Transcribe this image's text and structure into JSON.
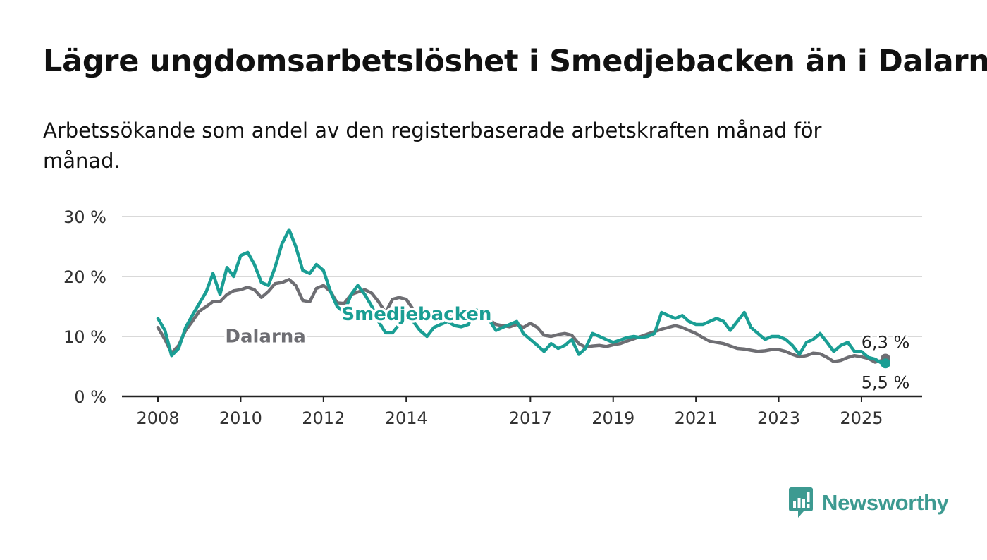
{
  "header": {
    "title": "Lägre ungdomsarbetslöshet i Smedjebacken än i Dalarna",
    "subtitle": "Arbetssökande som andel av den registerbaserade arbetskraften månad för månad."
  },
  "brand": {
    "name": "Newsworthy",
    "logo_icon": "newsworthy-logo-icon",
    "color": "#3d9a91"
  },
  "chart_data": {
    "type": "line",
    "title": "Lägre ungdomsarbetslöshet i Smedjebacken än i Dalarna",
    "subtitle": "Arbetssökande som andel av den registerbaserade arbetskraften månad för månad.",
    "xlabel": "",
    "ylabel": "",
    "x_range": [
      2008.0,
      2025.58
    ],
    "ylim": [
      0,
      30
    ],
    "y_ticks": [
      {
        "value": 0,
        "label": "0 %"
      },
      {
        "value": 10,
        "label": "10 %"
      },
      {
        "value": 20,
        "label": "20 %"
      },
      {
        "value": 30,
        "label": "30 %"
      }
    ],
    "x_ticks": [
      {
        "value": 2008,
        "label": "2008"
      },
      {
        "value": 2010,
        "label": "2010"
      },
      {
        "value": 2012,
        "label": "2012"
      },
      {
        "value": 2014,
        "label": "2014"
      },
      {
        "value": 2017,
        "label": "2017"
      },
      {
        "value": 2019,
        "label": "2019"
      },
      {
        "value": 2021,
        "label": "2021"
      },
      {
        "value": 2023,
        "label": "2023"
      },
      {
        "value": 2025,
        "label": "2025"
      }
    ],
    "grid": true,
    "legend": "inline labels",
    "series": [
      {
        "name": "Dalarna",
        "color": "#6e6e73",
        "label_at": [
          2010.6,
          9.0
        ],
        "end_label": "6,3 %",
        "points": [
          [
            2008.0,
            11.5
          ],
          [
            2008.17,
            9.5
          ],
          [
            2008.33,
            7.2
          ],
          [
            2008.5,
            8.5
          ],
          [
            2008.67,
            11.0
          ],
          [
            2008.83,
            12.5
          ],
          [
            2009.0,
            14.2
          ],
          [
            2009.17,
            15.0
          ],
          [
            2009.33,
            15.8
          ],
          [
            2009.5,
            15.8
          ],
          [
            2009.67,
            17.0
          ],
          [
            2009.83,
            17.6
          ],
          [
            2010.0,
            17.8
          ],
          [
            2010.17,
            18.2
          ],
          [
            2010.33,
            17.8
          ],
          [
            2010.5,
            16.5
          ],
          [
            2010.67,
            17.5
          ],
          [
            2010.83,
            18.8
          ],
          [
            2011.0,
            19.0
          ],
          [
            2011.17,
            19.5
          ],
          [
            2011.33,
            18.5
          ],
          [
            2011.5,
            16.0
          ],
          [
            2011.67,
            15.8
          ],
          [
            2011.83,
            18.0
          ],
          [
            2012.0,
            18.5
          ],
          [
            2012.17,
            17.5
          ],
          [
            2012.33,
            15.6
          ],
          [
            2012.5,
            15.5
          ],
          [
            2012.67,
            17.0
          ],
          [
            2012.83,
            17.4
          ],
          [
            2013.0,
            17.8
          ],
          [
            2013.17,
            17.2
          ],
          [
            2013.33,
            15.8
          ],
          [
            2013.5,
            14.0
          ],
          [
            2013.67,
            16.2
          ],
          [
            2013.83,
            16.5
          ],
          [
            2014.0,
            16.2
          ],
          [
            2014.17,
            14.5
          ],
          [
            2014.33,
            13.8
          ],
          [
            2014.5,
            14.0
          ],
          [
            2014.67,
            13.5
          ],
          [
            2014.83,
            13.8
          ],
          [
            2015.0,
            14.0
          ],
          [
            2015.17,
            13.5
          ],
          [
            2015.33,
            13.2
          ],
          [
            2015.5,
            13.0
          ],
          [
            2015.67,
            13.8
          ],
          [
            2015.83,
            13.5
          ],
          [
            2016.0,
            12.8
          ],
          [
            2016.17,
            12.0
          ],
          [
            2016.33,
            11.8
          ],
          [
            2016.5,
            11.6
          ],
          [
            2016.67,
            12.0
          ],
          [
            2016.83,
            11.5
          ],
          [
            2017.0,
            12.2
          ],
          [
            2017.17,
            11.5
          ],
          [
            2017.33,
            10.2
          ],
          [
            2017.5,
            10.0
          ],
          [
            2017.67,
            10.3
          ],
          [
            2017.83,
            10.5
          ],
          [
            2018.0,
            10.2
          ],
          [
            2018.17,
            8.8
          ],
          [
            2018.33,
            8.2
          ],
          [
            2018.5,
            8.4
          ],
          [
            2018.67,
            8.5
          ],
          [
            2018.83,
            8.3
          ],
          [
            2019.0,
            8.6
          ],
          [
            2019.17,
            8.8
          ],
          [
            2019.33,
            9.2
          ],
          [
            2019.5,
            9.6
          ],
          [
            2019.67,
            10.0
          ],
          [
            2019.83,
            10.4
          ],
          [
            2020.0,
            10.8
          ],
          [
            2020.17,
            11.2
          ],
          [
            2020.33,
            11.5
          ],
          [
            2020.5,
            11.8
          ],
          [
            2020.67,
            11.5
          ],
          [
            2020.83,
            11.0
          ],
          [
            2021.0,
            10.5
          ],
          [
            2021.17,
            9.8
          ],
          [
            2021.33,
            9.2
          ],
          [
            2021.5,
            9.0
          ],
          [
            2021.67,
            8.8
          ],
          [
            2021.83,
            8.4
          ],
          [
            2022.0,
            8.0
          ],
          [
            2022.17,
            7.9
          ],
          [
            2022.33,
            7.7
          ],
          [
            2022.5,
            7.5
          ],
          [
            2022.67,
            7.6
          ],
          [
            2022.83,
            7.8
          ],
          [
            2023.0,
            7.8
          ],
          [
            2023.17,
            7.5
          ],
          [
            2023.33,
            7.0
          ],
          [
            2023.5,
            6.6
          ],
          [
            2023.67,
            6.8
          ],
          [
            2023.83,
            7.2
          ],
          [
            2024.0,
            7.1
          ],
          [
            2024.17,
            6.5
          ],
          [
            2024.33,
            5.8
          ],
          [
            2024.5,
            6.0
          ],
          [
            2024.67,
            6.5
          ],
          [
            2024.83,
            6.8
          ],
          [
            2025.0,
            6.6
          ],
          [
            2025.17,
            6.3
          ],
          [
            2025.33,
            5.7
          ],
          [
            2025.5,
            6.0
          ],
          [
            2025.58,
            6.3
          ]
        ]
      },
      {
        "name": "Smedjebacken",
        "color": "#1a9e94",
        "label_at": [
          2014.25,
          12.7
        ],
        "end_label": "5,5 %",
        "points": [
          [
            2008.0,
            13.0
          ],
          [
            2008.17,
            11.0
          ],
          [
            2008.33,
            6.8
          ],
          [
            2008.5,
            8.0
          ],
          [
            2008.67,
            11.5
          ],
          [
            2008.83,
            13.5
          ],
          [
            2009.0,
            15.5
          ],
          [
            2009.17,
            17.5
          ],
          [
            2009.33,
            20.5
          ],
          [
            2009.5,
            17.0
          ],
          [
            2009.67,
            21.5
          ],
          [
            2009.83,
            20.0
          ],
          [
            2010.0,
            23.5
          ],
          [
            2010.17,
            24.0
          ],
          [
            2010.33,
            22.0
          ],
          [
            2010.5,
            19.0
          ],
          [
            2010.67,
            18.5
          ],
          [
            2010.83,
            21.5
          ],
          [
            2011.0,
            25.5
          ],
          [
            2011.17,
            27.8
          ],
          [
            2011.33,
            25.0
          ],
          [
            2011.5,
            21.0
          ],
          [
            2011.67,
            20.5
          ],
          [
            2011.83,
            22.0
          ],
          [
            2012.0,
            21.0
          ],
          [
            2012.17,
            17.5
          ],
          [
            2012.33,
            15.0
          ],
          [
            2012.5,
            14.0
          ],
          [
            2012.67,
            17.0
          ],
          [
            2012.83,
            18.5
          ],
          [
            2013.0,
            17.0
          ],
          [
            2013.17,
            15.0
          ],
          [
            2013.33,
            12.5
          ],
          [
            2013.5,
            10.6
          ],
          [
            2013.67,
            10.6
          ],
          [
            2013.83,
            12.0
          ],
          [
            2014.0,
            13.0
          ],
          [
            2014.17,
            12.5
          ],
          [
            2014.33,
            11.0
          ],
          [
            2014.5,
            10.0
          ],
          [
            2014.67,
            11.5
          ],
          [
            2014.83,
            12.0
          ],
          [
            2015.0,
            12.5
          ],
          [
            2015.17,
            11.8
          ],
          [
            2015.33,
            11.6
          ],
          [
            2015.5,
            12.0
          ],
          [
            2015.67,
            14.5
          ],
          [
            2015.83,
            14.0
          ],
          [
            2016.0,
            12.8
          ],
          [
            2016.17,
            11.0
          ],
          [
            2016.33,
            11.5
          ],
          [
            2016.5,
            12.0
          ],
          [
            2016.67,
            12.5
          ],
          [
            2016.83,
            10.5
          ],
          [
            2017.0,
            9.5
          ],
          [
            2017.17,
            8.5
          ],
          [
            2017.33,
            7.5
          ],
          [
            2017.5,
            8.8
          ],
          [
            2017.67,
            8.0
          ],
          [
            2017.83,
            8.5
          ],
          [
            2018.0,
            9.5
          ],
          [
            2018.17,
            7.0
          ],
          [
            2018.33,
            8.0
          ],
          [
            2018.5,
            10.5
          ],
          [
            2018.67,
            10.0
          ],
          [
            2018.83,
            9.5
          ],
          [
            2019.0,
            9.0
          ],
          [
            2019.17,
            9.4
          ],
          [
            2019.33,
            9.8
          ],
          [
            2019.5,
            10.0
          ],
          [
            2019.67,
            9.8
          ],
          [
            2019.83,
            10.0
          ],
          [
            2020.0,
            10.5
          ],
          [
            2020.17,
            14.0
          ],
          [
            2020.33,
            13.5
          ],
          [
            2020.5,
            13.0
          ],
          [
            2020.67,
            13.5
          ],
          [
            2020.83,
            12.5
          ],
          [
            2021.0,
            12.0
          ],
          [
            2021.17,
            12.0
          ],
          [
            2021.33,
            12.5
          ],
          [
            2021.5,
            13.0
          ],
          [
            2021.67,
            12.5
          ],
          [
            2021.83,
            11.0
          ],
          [
            2022.0,
            12.5
          ],
          [
            2022.17,
            14.0
          ],
          [
            2022.33,
            11.5
          ],
          [
            2022.5,
            10.5
          ],
          [
            2022.67,
            9.5
          ],
          [
            2022.83,
            10.0
          ],
          [
            2023.0,
            10.0
          ],
          [
            2023.17,
            9.5
          ],
          [
            2023.33,
            8.5
          ],
          [
            2023.5,
            7.0
          ],
          [
            2023.67,
            9.0
          ],
          [
            2023.83,
            9.5
          ],
          [
            2024.0,
            10.5
          ],
          [
            2024.17,
            9.0
          ],
          [
            2024.33,
            7.5
          ],
          [
            2024.5,
            8.5
          ],
          [
            2024.67,
            9.0
          ],
          [
            2024.83,
            7.5
          ],
          [
            2025.0,
            7.5
          ],
          [
            2025.17,
            6.5
          ],
          [
            2025.33,
            6.2
          ],
          [
            2025.5,
            5.5
          ],
          [
            2025.58,
            5.5
          ]
        ]
      }
    ]
  }
}
